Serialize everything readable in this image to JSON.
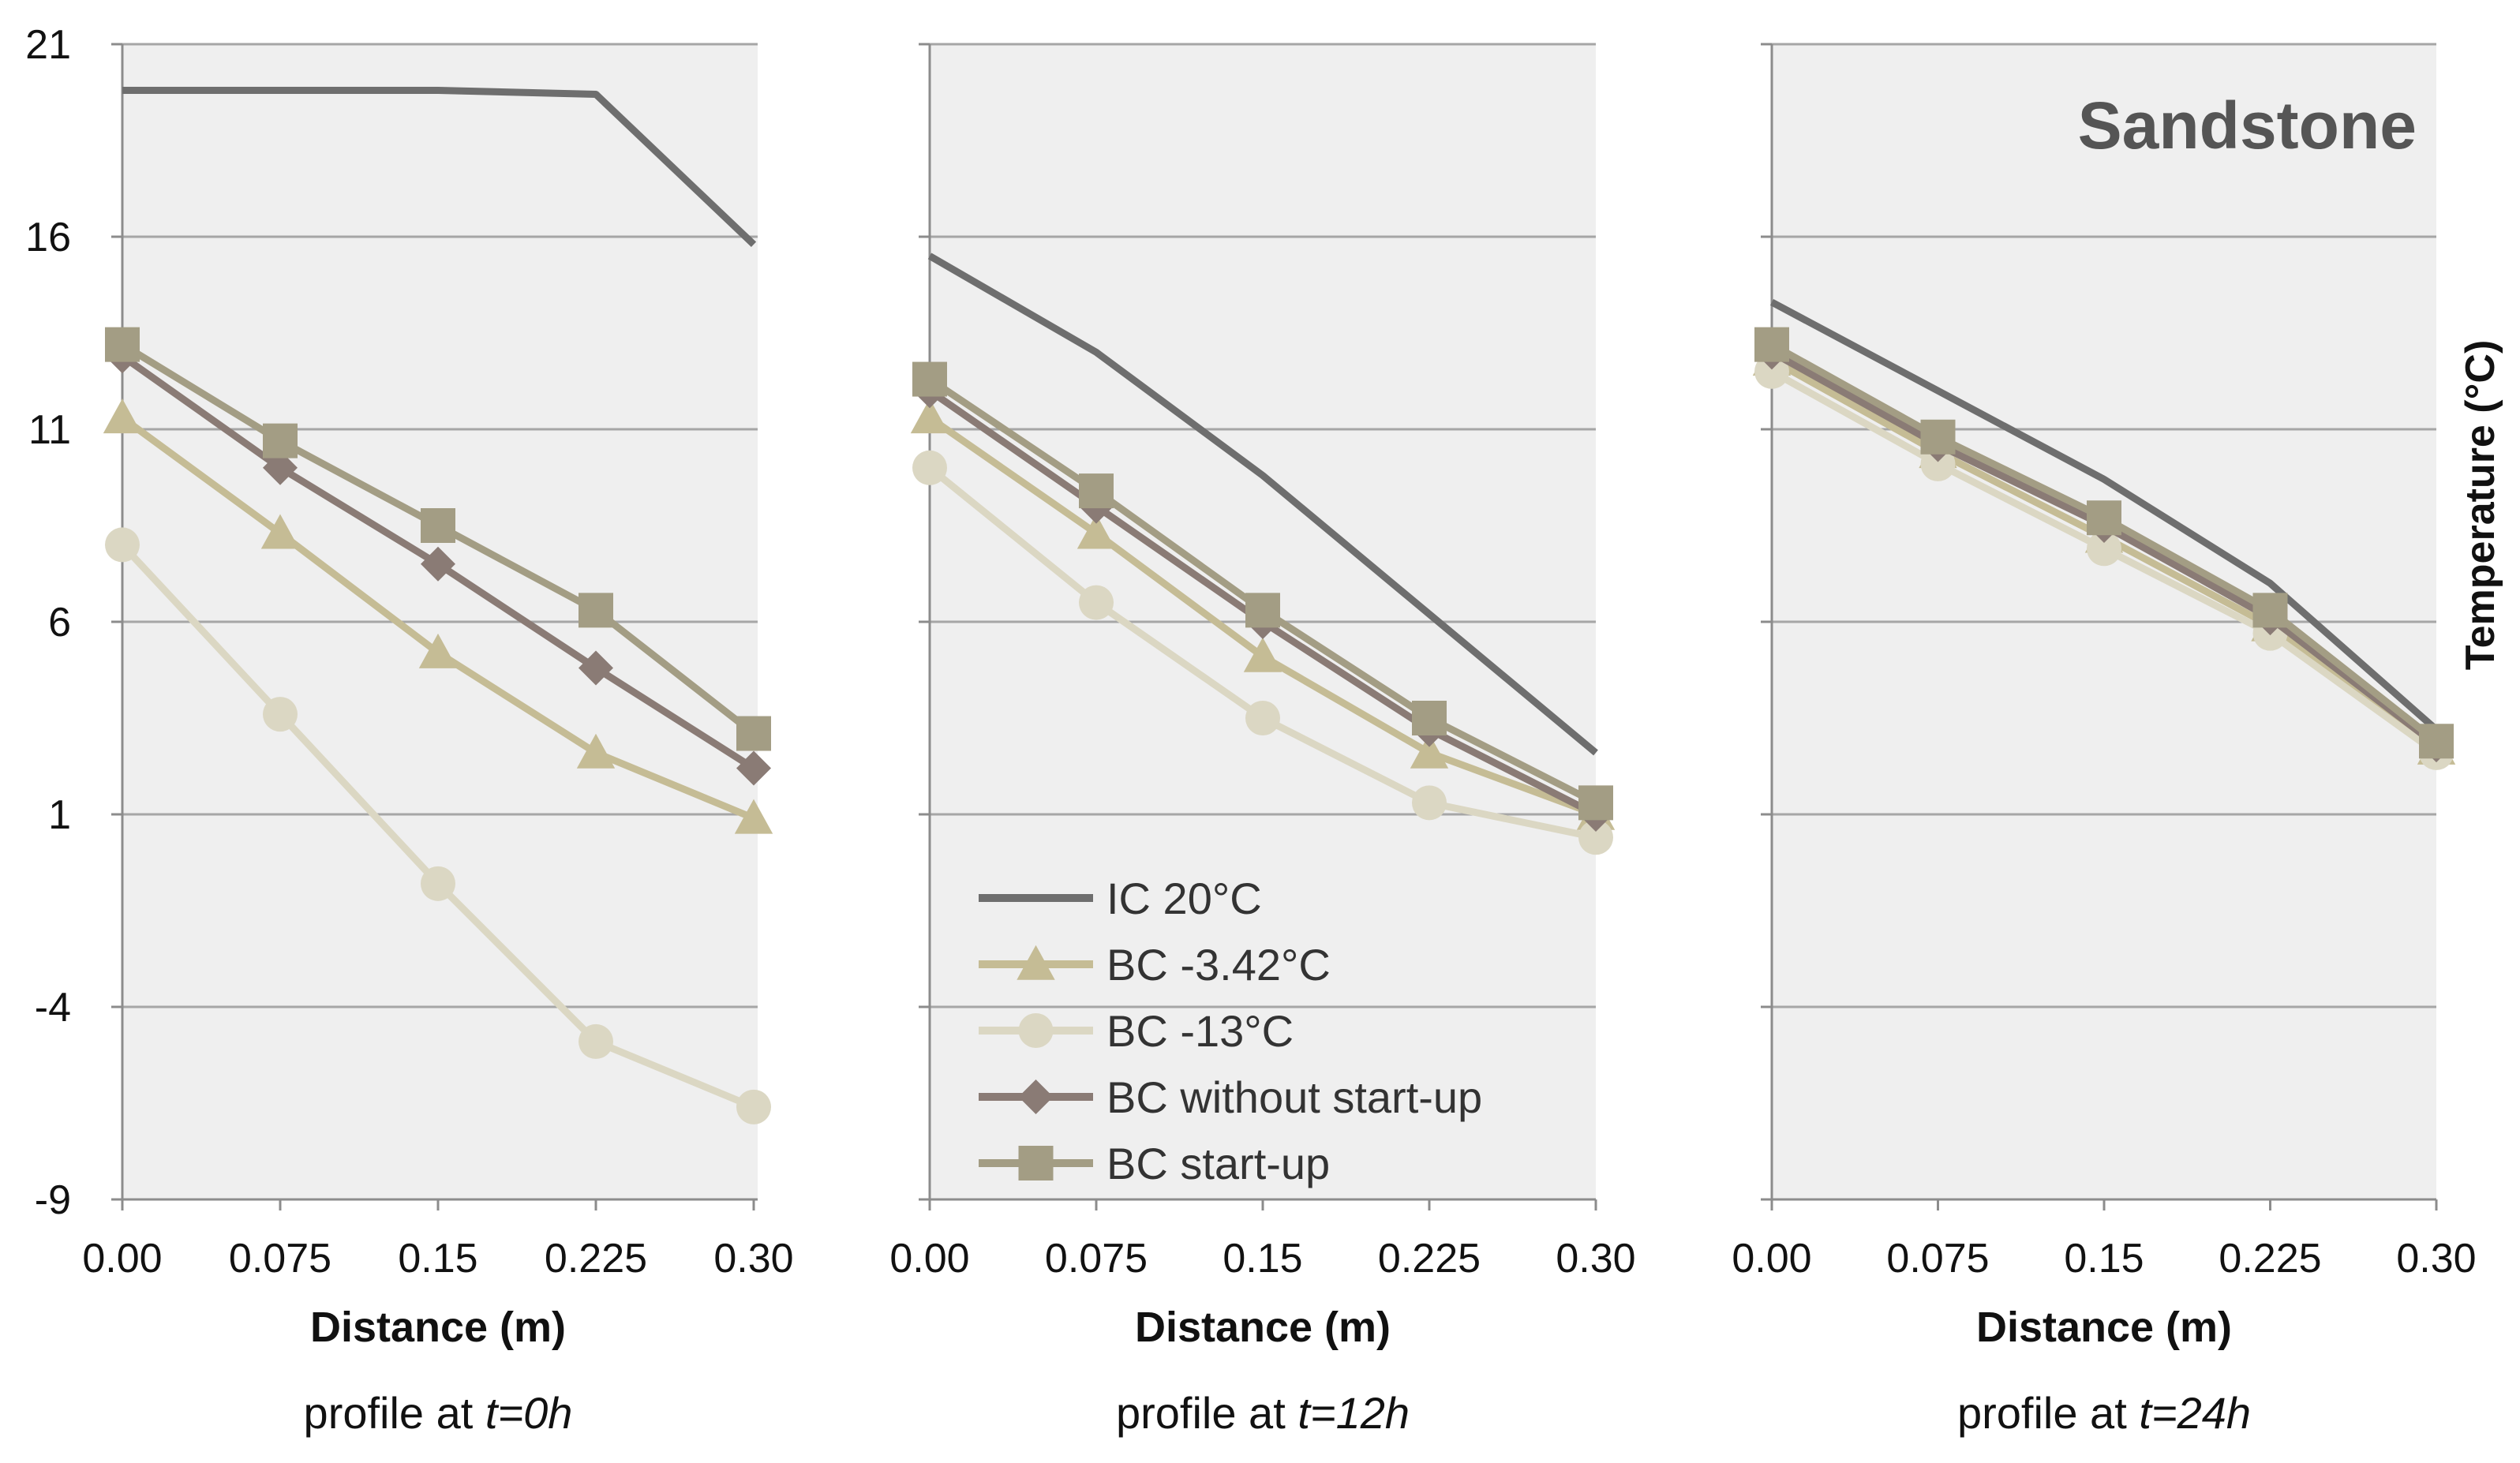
{
  "chart_data": {
    "type": "line",
    "title": "Sandstone",
    "ylabel": "Temperature (°C)",
    "ylim": [
      -9,
      21
    ],
    "yticks": [
      "21",
      "16",
      "11",
      "6",
      "1",
      "-4",
      "-9"
    ],
    "ytick_values": [
      21,
      16,
      11,
      6,
      1,
      -4,
      -9
    ],
    "x": [
      0,
      0.075,
      0.15,
      0.225,
      0.3
    ],
    "xticks": [
      "0.00",
      "0.075",
      "0.15",
      "0.225",
      "0.30"
    ],
    "xlabel": "Distance (m)",
    "legend": {
      "placement": "center-bottom of middle panel",
      "entries": [
        "IC 20°C",
        "BC -3.42°C",
        "BC -13°C",
        "BC without start-up",
        "BC start-up"
      ]
    },
    "series_styles": [
      {
        "name": "IC 20°C",
        "color": "#6e6e6e",
        "marker": "none"
      },
      {
        "name": "BC -3.42°C",
        "color": "#c5bc95",
        "marker": "triangle"
      },
      {
        "name": "BC -13°C",
        "color": "#dbd7c3",
        "marker": "circle"
      },
      {
        "name": "BC without start-up",
        "color": "#8a7b75",
        "marker": "diamond"
      },
      {
        "name": "BC start-up",
        "color": "#a39d84",
        "marker": "square"
      }
    ],
    "panels": [
      {
        "caption_prefix": "profile at ",
        "caption_time": "t=0h",
        "series": [
          {
            "name": "IC 20°C",
            "values": [
              19.8,
              19.8,
              19.8,
              19.7,
              15.8
            ]
          },
          {
            "name": "BC -3.42°C",
            "values": [
              11.3,
              8.3,
              5.2,
              2.6,
              0.9
            ]
          },
          {
            "name": "BC -13°C",
            "values": [
              8.0,
              3.6,
              -0.8,
              -4.9,
              -6.6
            ]
          },
          {
            "name": "BC without start-up",
            "values": [
              12.9,
              10.0,
              7.5,
              4.8,
              2.2
            ]
          },
          {
            "name": "BC start-up",
            "values": [
              13.2,
              10.7,
              8.5,
              6.3,
              3.1
            ]
          }
        ]
      },
      {
        "caption_prefix": "profile at ",
        "caption_time": "t=12h",
        "series": [
          {
            "name": "IC 20°C",
            "values": [
              15.5,
              13.0,
              9.8,
              6.2,
              2.6
            ]
          },
          {
            "name": "BC -3.42°C",
            "values": [
              11.3,
              8.3,
              5.1,
              2.6,
              1.0
            ]
          },
          {
            "name": "BC -13°C",
            "values": [
              10.0,
              6.5,
              3.5,
              1.3,
              0.4
            ]
          },
          {
            "name": "BC without start-up",
            "values": [
              12.0,
              9.0,
              6.0,
              3.2,
              1.0
            ]
          },
          {
            "name": "BC start-up",
            "values": [
              12.3,
              9.4,
              6.3,
              3.5,
              1.3
            ]
          }
        ]
      },
      {
        "caption_prefix": "profile at ",
        "caption_time": "t=24h",
        "series": [
          {
            "name": "IC 20°C",
            "values": [
              14.3,
              12.0,
              9.7,
              7.0,
              3.2
            ]
          },
          {
            "name": "BC -3.42°C",
            "values": [
              12.8,
              10.4,
              8.2,
              5.9,
              2.7
            ]
          },
          {
            "name": "BC -13°C",
            "values": [
              12.5,
              10.1,
              7.9,
              5.7,
              2.6
            ]
          },
          {
            "name": "BC without start-up",
            "values": [
              13.0,
              10.6,
              8.5,
              6.1,
              2.8
            ]
          },
          {
            "name": "BC start-up",
            "values": [
              13.2,
              10.8,
              8.7,
              6.3,
              2.9
            ]
          }
        ]
      }
    ]
  }
}
